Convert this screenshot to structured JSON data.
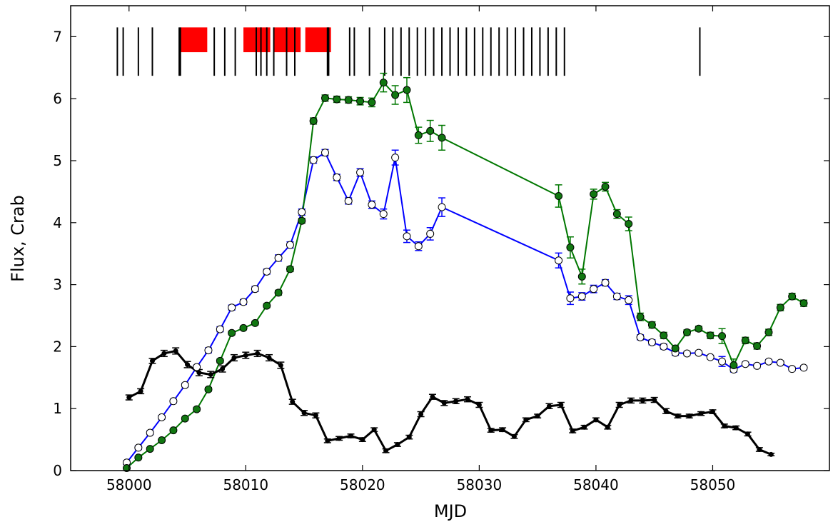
{
  "chart_data": {
    "type": "line",
    "title": "",
    "xlabel": "MJD",
    "ylabel": "Flux, Crab",
    "xlim": [
      57995,
      58060
    ],
    "ylim": [
      0,
      7.5
    ],
    "xticks": [
      58000,
      58010,
      58020,
      58030,
      58040,
      58050
    ],
    "yticks": [
      0,
      1,
      2,
      3,
      4,
      5,
      6,
      7
    ],
    "grid": false,
    "legend": "none",
    "series": [
      {
        "color": "#0000ff",
        "marker": "open-circle",
        "x": [
          57999.8,
          58000.8,
          58001.8,
          58002.8,
          58003.8,
          58004.8,
          58005.8,
          58006.8,
          58007.8,
          58008.8,
          58009.8,
          58010.8,
          58011.8,
          58012.8,
          58013.8,
          58014.8,
          58015.8,
          58016.8,
          58017.8,
          58018.8,
          58019.8,
          58020.8,
          58021.8,
          58022.8,
          58023.8,
          58024.8,
          58025.8,
          58026.8,
          58036.8,
          58037.8,
          58038.8,
          58039.8,
          58040.8,
          58041.8,
          58042.8,
          58043.8,
          58044.8,
          58045.8,
          58046.8,
          58047.8,
          58048.8,
          58049.8,
          58050.8,
          58051.8,
          58052.8,
          58053.8,
          58054.8,
          58055.8,
          58056.8,
          58057.8
        ],
        "y": [
          0.13,
          0.37,
          0.61,
          0.86,
          1.12,
          1.38,
          1.67,
          1.94,
          2.28,
          2.63,
          2.72,
          2.93,
          3.21,
          3.43,
          3.64,
          4.17,
          5.01,
          5.13,
          4.73,
          4.35,
          4.81,
          4.29,
          4.14,
          5.05,
          3.78,
          3.62,
          3.82,
          4.25,
          3.39,
          2.78,
          2.81,
          2.93,
          3.03,
          2.81,
          2.75,
          2.15,
          2.07,
          2.0,
          1.9,
          1.89,
          1.9,
          1.83,
          1.76,
          1.63,
          1.72,
          1.69,
          1.76,
          1.74,
          1.64,
          1.66
        ],
        "yerr": [
          0.03,
          0.03,
          0.03,
          0.03,
          0.03,
          0.03,
          0.03,
          0.04,
          0.04,
          0.04,
          0.04,
          0.04,
          0.04,
          0.05,
          0.05,
          0.05,
          0.05,
          0.05,
          0.05,
          0.05,
          0.06,
          0.06,
          0.08,
          0.12,
          0.1,
          0.07,
          0.1,
          0.15,
          0.12,
          0.1,
          0.06,
          0.06,
          0.05,
          0.05,
          0.07,
          0.04,
          0.04,
          0.04,
          0.04,
          0.03,
          0.03,
          0.03,
          0.08,
          0.04,
          0.03,
          0.03,
          0.03,
          0.03,
          0.03,
          0.03
        ]
      },
      {
        "color": "#007700",
        "marker": "filled-circle",
        "x": [
          57999.8,
          58000.8,
          58001.8,
          58002.8,
          58003.8,
          58004.8,
          58005.8,
          58006.8,
          58007.8,
          58008.8,
          58009.8,
          58010.8,
          58011.8,
          58012.8,
          58013.8,
          58014.8,
          58015.8,
          58016.8,
          58017.8,
          58018.8,
          58019.8,
          58020.8,
          58021.8,
          58022.8,
          58023.8,
          58024.8,
          58025.8,
          58026.8,
          58036.8,
          58037.8,
          58038.8,
          58039.8,
          58040.8,
          58041.8,
          58042.8,
          58043.8,
          58044.8,
          58045.8,
          58046.8,
          58047.8,
          58048.8,
          58049.8,
          58050.8,
          58051.8,
          58052.8,
          58053.8,
          58054.8,
          58055.8,
          58056.8,
          58057.8
        ],
        "y": [
          0.04,
          0.21,
          0.35,
          0.49,
          0.65,
          0.84,
          0.99,
          1.31,
          1.77,
          2.22,
          2.3,
          2.38,
          2.66,
          2.87,
          3.25,
          4.03,
          5.64,
          6.01,
          5.99,
          5.98,
          5.96,
          5.94,
          6.26,
          6.06,
          6.14,
          5.41,
          5.48,
          5.37,
          4.43,
          3.6,
          3.13,
          4.46,
          4.58,
          4.14,
          3.98,
          2.48,
          2.35,
          2.18,
          1.97,
          2.23,
          2.29,
          2.18,
          2.17,
          1.7,
          2.1,
          2.01,
          2.23,
          2.63,
          2.81,
          2.7
        ],
        "yerr": [
          0.02,
          0.02,
          0.02,
          0.02,
          0.02,
          0.02,
          0.03,
          0.03,
          0.03,
          0.03,
          0.03,
          0.03,
          0.03,
          0.04,
          0.04,
          0.04,
          0.05,
          0.05,
          0.05,
          0.05,
          0.06,
          0.07,
          0.15,
          0.15,
          0.2,
          0.13,
          0.17,
          0.2,
          0.18,
          0.17,
          0.12,
          0.08,
          0.07,
          0.07,
          0.11,
          0.06,
          0.05,
          0.05,
          0.05,
          0.04,
          0.04,
          0.05,
          0.12,
          0.1,
          0.05,
          0.05,
          0.05,
          0.05,
          0.05,
          0.05
        ]
      },
      {
        "color": "#000000",
        "marker": "small-dot",
        "x": [
          58000,
          58001,
          58002,
          58003,
          58004,
          58005,
          58006,
          58007,
          58008,
          58009,
          58010,
          58011,
          58012,
          58013,
          58014,
          58015,
          58016,
          58017,
          58018,
          58019,
          58020,
          58021,
          58022,
          58023,
          58024,
          58025,
          58026,
          58027,
          58028,
          58029,
          58030,
          58031,
          58032,
          58033,
          58034,
          58035,
          58036,
          58037,
          58038,
          58039,
          58040,
          58041,
          58042,
          58043,
          58044,
          58045,
          58046,
          58047,
          58048,
          58049,
          58050,
          58051,
          58052,
          58053,
          58054,
          58055,
          58056
        ],
        "y": [
          1.18,
          1.28,
          1.77,
          1.89,
          1.93,
          1.71,
          1.58,
          1.55,
          1.64,
          1.82,
          1.86,
          1.89,
          1.82,
          1.7,
          1.11,
          0.93,
          0.89,
          0.48,
          0.52,
          0.56,
          0.5,
          0.66,
          0.32,
          0.42,
          0.54,
          0.91,
          1.19,
          1.09,
          1.12,
          1.15,
          1.06,
          0.65,
          0.66,
          0.55,
          0.82,
          0.88,
          1.04,
          1.06,
          0.64,
          0.7,
          0.82,
          0.7,
          1.06,
          1.13,
          1.13,
          1.14,
          0.96,
          0.88,
          0.88,
          0.92,
          0.95,
          0.72,
          0.69,
          0.59,
          0.34,
          0.26,
          null
        ],
        "yerr": [
          0.04,
          0.04,
          0.04,
          0.05,
          0.05,
          0.05,
          0.05,
          0.05,
          0.05,
          0.05,
          0.05,
          0.05,
          0.05,
          0.05,
          0.04,
          0.04,
          0.04,
          0.03,
          0.03,
          0.03,
          0.03,
          0.03,
          0.03,
          0.03,
          0.03,
          0.04,
          0.04,
          0.04,
          0.04,
          0.04,
          0.04,
          0.03,
          0.03,
          0.03,
          0.03,
          0.03,
          0.04,
          0.04,
          0.03,
          0.03,
          0.03,
          0.03,
          0.04,
          0.04,
          0.04,
          0.04,
          0.04,
          0.03,
          0.03,
          0.03,
          0.03,
          0.03,
          0.03,
          0.03,
          0.03,
          0.02,
          0.02
        ]
      }
    ],
    "event_lines": {
      "color": "#000000",
      "y_range": [
        6.37,
        7.15
      ],
      "x": [
        57999.0,
        57999.5,
        58000.8,
        58002.0,
        58004.3,
        58004.4,
        58007.3,
        58008.2,
        58009.1,
        58010.9,
        58011.3,
        58011.8,
        58012.4,
        58013.5,
        58014.2,
        58017.0,
        58017.1,
        58018.9,
        58019.3,
        58020.6,
        58021.9,
        58022.6,
        58023.3,
        58024.0,
        58024.7,
        58025.4,
        58026.1,
        58026.8,
        58027.5,
        58028.2,
        58028.9,
        58029.6,
        58030.3,
        58031.0,
        58031.7,
        58032.4,
        58033.1,
        58033.8,
        58034.5,
        58035.2,
        58035.9,
        58036.6,
        58037.3,
        58048.9
      ]
    },
    "highlight_bands": {
      "color": "#ff0000",
      "y_range": [
        6.75,
        7.15
      ],
      "intervals": [
        [
          58004.4,
          58006.7
        ],
        [
          58009.8,
          58012.1
        ],
        [
          58012.4,
          58014.7
        ],
        [
          58015.1,
          58017.3
        ]
      ]
    }
  }
}
